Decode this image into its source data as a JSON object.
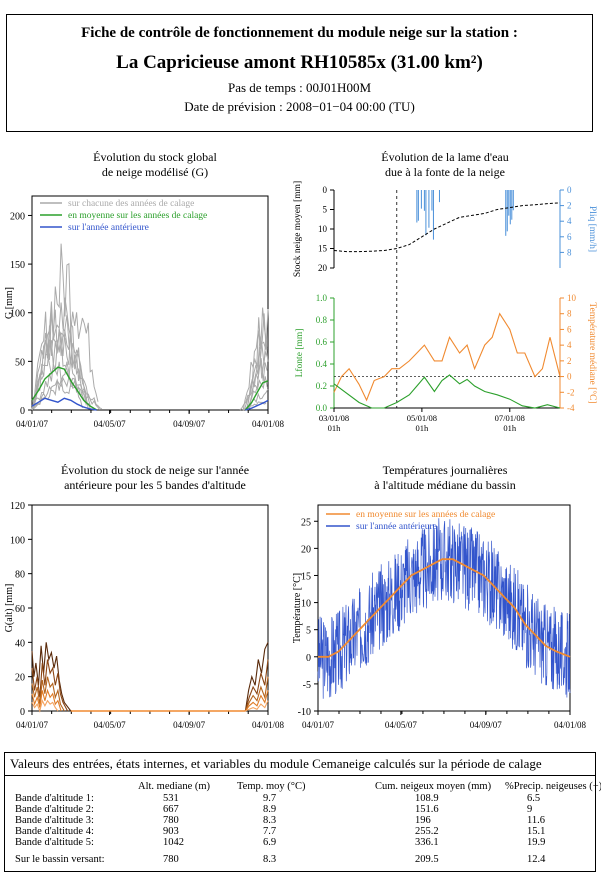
{
  "header": {
    "title": "Fiche de contrôle de fonctionnement du module neige sur la station :",
    "station": "La Capricieuse amont  RH10585x (31.00 km²)",
    "timestep": "Pas de temps : 00J01H00M",
    "forecast_date": "Date de prévision : 2008−01−04 00:00 (TU)"
  },
  "colors": {
    "grey": "#aaaaaa",
    "green": "#2ca02c",
    "blue": "#3355cc",
    "orange": "#f08a30",
    "brown": "#7a3b10",
    "lightblue": "#4a90d9"
  },
  "chart_data": [
    {
      "id": "stock-global",
      "type": "line",
      "title": "Évolution du stock global\nde neige modélisé (G)",
      "ylabel": "G [mm]",
      "ylim": [
        0,
        220
      ],
      "yticks": [
        0,
        50,
        100,
        150,
        200
      ],
      "xticks": [
        "04/01/07",
        "04/05/07",
        "04/09/07",
        "04/01/08"
      ],
      "x_days": [
        0,
        120,
        243,
        365
      ],
      "legend": [
        "sur chacune des années de calage",
        "en moyenne sur les années de calage",
        "sur l'année antérieure"
      ],
      "legend_position": "top-left",
      "series": [
        {
          "name": "en moyenne sur les années de calage",
          "x": [
            0,
            10,
            20,
            30,
            40,
            50,
            60,
            70,
            80,
            90,
            100,
            330,
            340,
            350,
            357,
            365
          ],
          "values": [
            10,
            20,
            32,
            38,
            44,
            42,
            30,
            20,
            10,
            4,
            0,
            0,
            8,
            20,
            28,
            30
          ]
        },
        {
          "name": "sur l'année antérieure",
          "x": [
            0,
            10,
            20,
            30,
            40,
            50,
            60,
            70,
            80,
            90,
            100,
            330,
            340,
            350,
            360,
            365
          ],
          "values": [
            4,
            8,
            12,
            10,
            8,
            12,
            10,
            6,
            3,
            1,
            0,
            0,
            2,
            5,
            8,
            10
          ]
        }
      ]
    },
    {
      "id": "lame-eau",
      "type": "line",
      "title": "Évolution de la lame d'eau\ndue à la fonte de la neige",
      "ylabel_top_left": "Stock neige moyen [mm]",
      "ylabel_top_right": "Pliq [mm/h]",
      "ylabel_bottom_left": "Lfonte [mm]",
      "ylabel_bottom_right": "Température médiane [°C]",
      "top_left_ticks": [
        0,
        5,
        10,
        15,
        20
      ],
      "top_right_ticks": [
        0,
        2,
        4,
        6,
        8
      ],
      "bottom_left_ticks": [
        "0.0",
        "0.2",
        "0.4",
        "0.6",
        "0.8",
        "1.0"
      ],
      "bottom_right_ticks": [
        -4,
        -2,
        0,
        2,
        4,
        6,
        8,
        10
      ],
      "xticks": [
        "03/01/08\n01h",
        "05/01/08\n01h",
        "07/01/08\n01h"
      ],
      "series": [
        {
          "name": "Stock neige moyen",
          "x": [
            0,
            0.5,
            1,
            1.5,
            2,
            2.5,
            3,
            3.5,
            4,
            4.5,
            5,
            5.5,
            6,
            6.5,
            7,
            7.5,
            8,
            8.5,
            9
          ],
          "values": [
            15.5,
            15.8,
            15.8,
            15.7,
            15.5,
            15.0,
            14.0,
            12.0,
            10.0,
            8.5,
            7.0,
            6.5,
            6.0,
            5.0,
            4.5,
            4.0,
            3.8,
            3.5,
            3.3
          ]
        },
        {
          "name": "Température médiane",
          "x": [
            0,
            0.3,
            0.6,
            1,
            1.3,
            1.6,
            2,
            2.3,
            2.6,
            3,
            3.3,
            3.6,
            4,
            4.3,
            4.6,
            5,
            5.3,
            5.6,
            6,
            6.3,
            6.6,
            7,
            7.3,
            7.6,
            8,
            8.3,
            8.6,
            9
          ],
          "values": [
            -2,
            0,
            1,
            -1,
            -3,
            -0.5,
            0,
            1,
            1,
            2,
            3,
            4,
            2,
            2,
            5,
            3,
            4,
            1,
            4,
            5,
            8,
            6,
            3,
            3,
            0,
            1,
            5,
            0
          ]
        },
        {
          "name": "Lfonte",
          "x": [
            0,
            1,
            1.5,
            2,
            2.5,
            3,
            3.3,
            3.6,
            4,
            4.3,
            4.6,
            5,
            5.3,
            5.6,
            6,
            6.5,
            7,
            7.5,
            8,
            8.5,
            9
          ],
          "values": [
            0.22,
            0.05,
            0.0,
            0.0,
            0.05,
            0.12,
            0.2,
            0.28,
            0.15,
            0.25,
            0.3,
            0.22,
            0.26,
            0.2,
            0.15,
            0.12,
            0.08,
            0.02,
            0.0,
            0.03,
            0.0
          ]
        }
      ]
    },
    {
      "id": "stock-bandes",
      "type": "line",
      "title": "Évolution du stock de neige sur l'année\nantérieure pour les 5 bandes d'altitude",
      "ylabel": "G(alt) [mm]",
      "ylim": [
        0,
        120
      ],
      "yticks": [
        0,
        20,
        40,
        60,
        80,
        100,
        120
      ],
      "xticks": [
        "04/01/07",
        "04/05/07",
        "04/09/07",
        "04/01/08"
      ],
      "x_days": [
        0,
        120,
        243,
        365
      ],
      "series": [
        {
          "name": "Bande 5",
          "x": [
            0,
            3,
            6,
            10,
            14,
            18,
            22,
            26,
            30,
            34,
            38,
            42,
            46,
            50,
            60,
            330,
            335,
            340,
            345,
            350,
            355,
            360,
            365
          ],
          "values": [
            35,
            20,
            28,
            15,
            38,
            22,
            40,
            30,
            34,
            25,
            32,
            18,
            10,
            5,
            0,
            0,
            12,
            20,
            15,
            30,
            22,
            36,
            40
          ]
        },
        {
          "name": "Bande 4",
          "x": [
            0,
            4,
            8,
            12,
            16,
            20,
            24,
            28,
            32,
            36,
            40,
            44,
            48,
            55,
            330,
            336,
            342,
            348,
            354,
            360,
            365
          ],
          "values": [
            25,
            12,
            20,
            8,
            28,
            15,
            30,
            22,
            25,
            15,
            22,
            10,
            5,
            0,
            0,
            8,
            14,
            10,
            22,
            15,
            30
          ]
        },
        {
          "name": "Bande 3",
          "x": [
            0,
            4,
            8,
            12,
            16,
            20,
            24,
            28,
            32,
            36,
            40,
            44,
            50,
            330,
            336,
            342,
            348,
            354,
            360,
            365
          ],
          "values": [
            16,
            8,
            14,
            4,
            18,
            10,
            20,
            14,
            16,
            8,
            12,
            4,
            0,
            0,
            5,
            9,
            6,
            14,
            8,
            20
          ]
        },
        {
          "name": "Bande 2",
          "x": [
            0,
            4,
            8,
            12,
            16,
            20,
            24,
            28,
            32,
            36,
            40,
            45,
            330,
            336,
            342,
            348,
            354,
            360,
            365
          ],
          "values": [
            10,
            4,
            8,
            2,
            12,
            6,
            12,
            8,
            10,
            4,
            6,
            0,
            0,
            3,
            5,
            3,
            9,
            5,
            12
          ]
        },
        {
          "name": "Bande 1",
          "x": [
            0,
            4,
            8,
            12,
            16,
            20,
            24,
            28,
            32,
            36,
            40,
            330,
            336,
            342,
            348,
            354,
            360,
            365
          ],
          "values": [
            5,
            2,
            4,
            0,
            6,
            3,
            6,
            4,
            5,
            2,
            0,
            0,
            1,
            2,
            1,
            4,
            2,
            6
          ]
        }
      ]
    },
    {
      "id": "temperatures",
      "type": "line",
      "title": "Températures journalières\nà l'altitude médiane du bassin",
      "ylabel": "Température [°C]",
      "ylim": [
        -10,
        28
      ],
      "yticks": [
        -10,
        -5,
        0,
        5,
        10,
        15,
        20,
        25
      ],
      "xticks": [
        "04/01/07",
        "04/05/07",
        "04/09/07",
        "04/01/08"
      ],
      "x_days": [
        0,
        120,
        243,
        365
      ],
      "legend": [
        "en moyenne sur les années de calage",
        "sur l'année antérieure"
      ],
      "legend_position": "top-left",
      "series": [
        {
          "name": "en moyenne sur les années de calage",
          "x": [
            0,
            15,
            30,
            45,
            60,
            75,
            90,
            105,
            120,
            135,
            150,
            165,
            180,
            195,
            210,
            225,
            240,
            255,
            270,
            285,
            300,
            315,
            330,
            345,
            365
          ],
          "values": [
            0,
            0,
            1,
            3,
            5,
            7,
            9,
            11,
            13,
            15,
            16,
            17,
            18,
            18,
            17,
            16,
            15,
            13,
            11,
            9,
            6,
            4,
            2,
            1,
            0
          ]
        }
      ]
    }
  ],
  "table": {
    "title": "Valeurs des entrées, états internes, et variables du module Cemaneige calculés sur la période de calage",
    "headers": [
      "Alt. mediane (m)",
      "Temp. moy (°C)",
      "Cum. neigeux moyen (mm)",
      "%Precip. neigeuses (−)"
    ],
    "rows": [
      {
        "label": "Bande d'altitude 1:",
        "alt": "531",
        "temp": "9.7",
        "cum": "108.9",
        "pct": "6.5"
      },
      {
        "label": "Bande d'altitude 2:",
        "alt": "667",
        "temp": "8.9",
        "cum": "151.6",
        "pct": "9"
      },
      {
        "label": "Bande d'altitude 3:",
        "alt": "780",
        "temp": "8.3",
        "cum": "196",
        "pct": "11.6"
      },
      {
        "label": "Bande d'altitude 4:",
        "alt": "903",
        "temp": "7.7",
        "cum": "255.2",
        "pct": "15.1"
      },
      {
        "label": "Bande d'altitude 5:",
        "alt": "1042",
        "temp": "6.9",
        "cum": "336.1",
        "pct": "19.9"
      }
    ],
    "total": {
      "label": "Sur le bassin versant:",
      "alt": "780",
      "temp": "8.3",
      "cum": "209.5",
      "pct": "12.4"
    }
  }
}
